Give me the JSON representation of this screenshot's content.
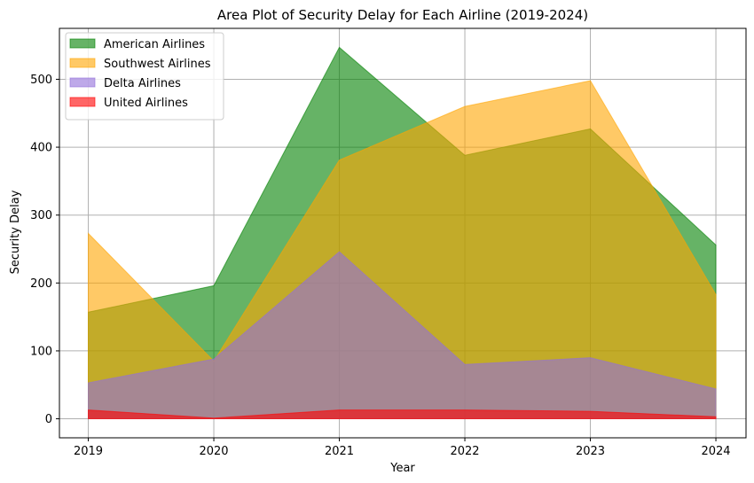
{
  "chart_data": {
    "type": "area",
    "title": "Area Plot of Security Delay for Each Airline (2019-2024)",
    "xlabel": "Year",
    "ylabel": "Security Delay",
    "categories": [
      "2019",
      "2020",
      "2021",
      "2022",
      "2023",
      "2024"
    ],
    "xlim": [
      2018.77,
      2024.24
    ],
    "ylim": [
      -28,
      575
    ],
    "yticks": [
      0,
      100,
      200,
      300,
      400,
      500
    ],
    "grid": true,
    "legend_position": "upper left",
    "stacked": false,
    "series": [
      {
        "name": "American Airlines",
        "color": "#008000",
        "alpha": 0.6,
        "values": [
          157,
          196,
          547,
          388,
          427,
          256
        ]
      },
      {
        "name": "Southwest Airlines",
        "color": "#FFA500",
        "alpha": 0.6,
        "values": [
          273,
          85,
          381,
          460,
          498,
          183
        ]
      },
      {
        "name": "Delta Airlines",
        "color": "#9370DB",
        "alpha": 0.6,
        "values": [
          53,
          88,
          246,
          80,
          90,
          44
        ]
      },
      {
        "name": "United Airlines",
        "color": "#FF0000",
        "alpha": 0.6,
        "values": [
          13,
          1,
          13,
          13,
          11,
          3
        ]
      }
    ]
  }
}
